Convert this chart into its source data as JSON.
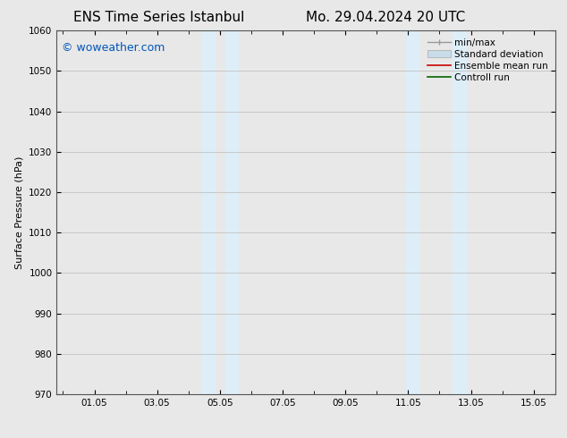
{
  "title_left": "ENS Time Series Istanbul",
  "title_right": "Mo. 29.04.2024 20 UTC",
  "ylabel": "Surface Pressure (hPa)",
  "ylim": [
    970,
    1060
  ],
  "yticks": [
    970,
    980,
    990,
    1000,
    1010,
    1020,
    1030,
    1040,
    1050,
    1060
  ],
  "xtick_labels": [
    "01.05",
    "03.05",
    "05.05",
    "07.05",
    "09.05",
    "11.05",
    "13.05",
    "15.05"
  ],
  "xtick_positions": [
    1.0,
    3.0,
    5.0,
    7.0,
    9.0,
    11.0,
    13.0,
    15.0
  ],
  "shaded_regions": [
    {
      "x_start": 4.42,
      "x_end": 4.83,
      "color": "#ddeef8"
    },
    {
      "x_start": 5.17,
      "x_end": 5.58,
      "color": "#ddeef8"
    },
    {
      "x_start": 10.92,
      "x_end": 11.33,
      "color": "#ddeef8"
    },
    {
      "x_start": 12.42,
      "x_end": 12.83,
      "color": "#ddeef8"
    }
  ],
  "watermark_text": "© woweather.com",
  "watermark_color": "#0055bb",
  "background_color": "#e8e8e8",
  "plot_bg_color": "#e8e8e8",
  "legend_entries": [
    {
      "label": "min/max",
      "color": "#aaaaaa",
      "type": "errbar"
    },
    {
      "label": "Standard deviation",
      "color": "#c8dcea",
      "type": "box"
    },
    {
      "label": "Ensemble mean run",
      "color": "#cc0000",
      "type": "line"
    },
    {
      "label": "Controll run",
      "color": "#006600",
      "type": "line"
    }
  ],
  "grid_color": "#bbbbbb",
  "title_fontsize": 11,
  "axis_label_fontsize": 8,
  "tick_fontsize": 7.5,
  "watermark_fontsize": 9,
  "legend_fontsize": 7.5
}
